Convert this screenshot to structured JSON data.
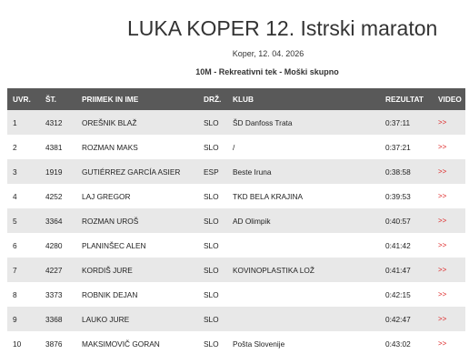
{
  "event": {
    "title": "LUKA KOPER 12. Istrski maraton",
    "location_date": "Koper, 12. 04. 2026",
    "category": "10M - Rekreativni tek - Moški skupno"
  },
  "table": {
    "headers": {
      "rank": "UVR.",
      "bib": "ŠT.",
      "name": "PRIIMEK IN IME",
      "country": "DRŽ.",
      "club": "KLUB",
      "time": "REZULTAT",
      "video": "VIDEO"
    },
    "rows": [
      {
        "rank": "1",
        "bib": "4312",
        "name": "OREŠNIK BLAŽ",
        "country": "SLO",
        "club": "ŠD Danfoss Trata",
        "time": "0:37:11",
        "video": ">>"
      },
      {
        "rank": "2",
        "bib": "4381",
        "name": "ROZMAN MAKS",
        "country": "SLO",
        "club": "/",
        "time": "0:37:21",
        "video": ">>"
      },
      {
        "rank": "3",
        "bib": "1919",
        "name": "GUTIÉRREZ GARCÍA ASIER",
        "country": "ESP",
        "club": "Beste Iruna",
        "time": "0:38:58",
        "video": ">>"
      },
      {
        "rank": "4",
        "bib": "4252",
        "name": "LAJ GREGOR",
        "country": "SLO",
        "club": "TKD BELA KRAJINA",
        "time": "0:39:53",
        "video": ">>"
      },
      {
        "rank": "5",
        "bib": "3364",
        "name": "ROZMAN UROŠ",
        "country": "SLO",
        "club": "AD Olimpik",
        "time": "0:40:57",
        "video": ">>"
      },
      {
        "rank": "6",
        "bib": "4280",
        "name": "PLANINŠEC ALEN",
        "country": "SLO",
        "club": "",
        "time": "0:41:42",
        "video": ">>"
      },
      {
        "rank": "7",
        "bib": "4227",
        "name": "KORDIŠ JURE",
        "country": "SLO",
        "club": "KOVINOPLASTIKA LOŽ",
        "time": "0:41:47",
        "video": ">>"
      },
      {
        "rank": "8",
        "bib": "3373",
        "name": "ROBNIK DEJAN",
        "country": "SLO",
        "club": "",
        "time": "0:42:15",
        "video": ">>"
      },
      {
        "rank": "9",
        "bib": "3368",
        "name": "LAUKO JURE",
        "country": "SLO",
        "club": "",
        "time": "0:42:47",
        "video": ">>"
      },
      {
        "rank": "10",
        "bib": "3876",
        "name": "MAKSIMOVIČ GORAN",
        "country": "SLO",
        "club": "Pošta Slovenije",
        "time": "0:43:02",
        "video": ">>"
      }
    ]
  },
  "colors": {
    "header_bg": "#595959",
    "row_alt_bg": "#e8e8e8",
    "video_link": "#dd2222"
  }
}
